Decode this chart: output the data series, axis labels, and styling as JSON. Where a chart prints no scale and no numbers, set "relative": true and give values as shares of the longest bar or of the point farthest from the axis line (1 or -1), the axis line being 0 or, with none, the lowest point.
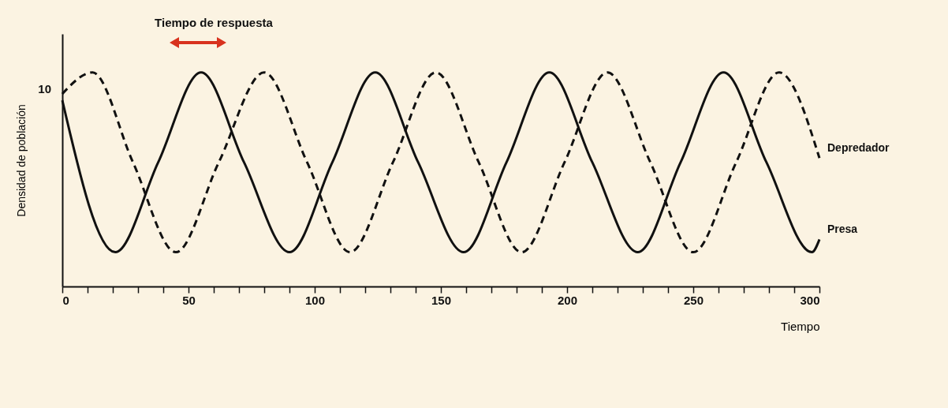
{
  "chart_data": {
    "type": "line",
    "relative": true,
    "xlabel": "Tiempo",
    "ylabel": "Densidad de población",
    "xlim": [
      0,
      300
    ],
    "xticks": [
      0,
      {
        "value": 10,
        "label": null
      },
      {
        "value": 20,
        "label": null
      },
      {
        "value": 30,
        "label": null
      },
      {
        "value": 40,
        "label": null
      },
      50,
      {
        "value": 60,
        "label": null
      },
      {
        "value": 70,
        "label": null
      },
      {
        "value": 80,
        "label": null
      },
      {
        "value": 90,
        "label": null
      },
      100,
      {
        "value": 110,
        "label": null
      },
      {
        "value": 120,
        "label": null
      },
      {
        "value": 130,
        "label": null
      },
      {
        "value": 140,
        "label": null
      },
      150,
      {
        "value": 160,
        "label": null
      },
      {
        "value": 170,
        "label": null
      },
      {
        "value": 180,
        "label": null
      },
      {
        "value": 190,
        "label": null
      },
      200,
      {
        "value": 210,
        "label": null
      },
      {
        "value": 220,
        "label": null
      },
      {
        "value": 230,
        "label": null
      },
      {
        "value": 240,
        "label": null
      },
      250,
      {
        "value": 260,
        "label": null
      },
      {
        "value": 270,
        "label": null
      },
      {
        "value": 280,
        "label": null
      },
      {
        "value": 290,
        "label": null
      },
      300
    ],
    "series": [
      {
        "name": "Presa",
        "color": "#111111",
        "line_style": "solid",
        "x": [
          0,
          21,
          38,
          55,
          72,
          90,
          107,
          124,
          141,
          159,
          176,
          193,
          210,
          228,
          245,
          262,
          279,
          297,
          300
        ],
        "values": [
          0.87,
          0.16,
          0.58,
          1,
          0.58,
          0.16,
          0.58,
          1,
          0.58,
          0.16,
          0.58,
          1,
          0.58,
          0.16,
          0.58,
          1,
          0.58,
          0.16,
          0.22
        ]
      },
      {
        "name": "Depredador",
        "color": "#111111",
        "line_style": "dashed",
        "x": [
          0,
          12,
          28,
          45,
          62,
          80,
          97,
          114,
          131,
          148,
          165,
          182,
          199,
          216,
          233,
          250,
          267,
          284,
          300
        ],
        "values": [
          0.9,
          1,
          0.58,
          0.16,
          0.58,
          1,
          0.58,
          0.16,
          0.58,
          1,
          0.58,
          0.16,
          0.58,
          1,
          0.58,
          0.16,
          0.58,
          1,
          0.6
        ]
      }
    ],
    "annotations": [
      "Tiempo de respuesta",
      "10"
    ],
    "legend": false
  }
}
